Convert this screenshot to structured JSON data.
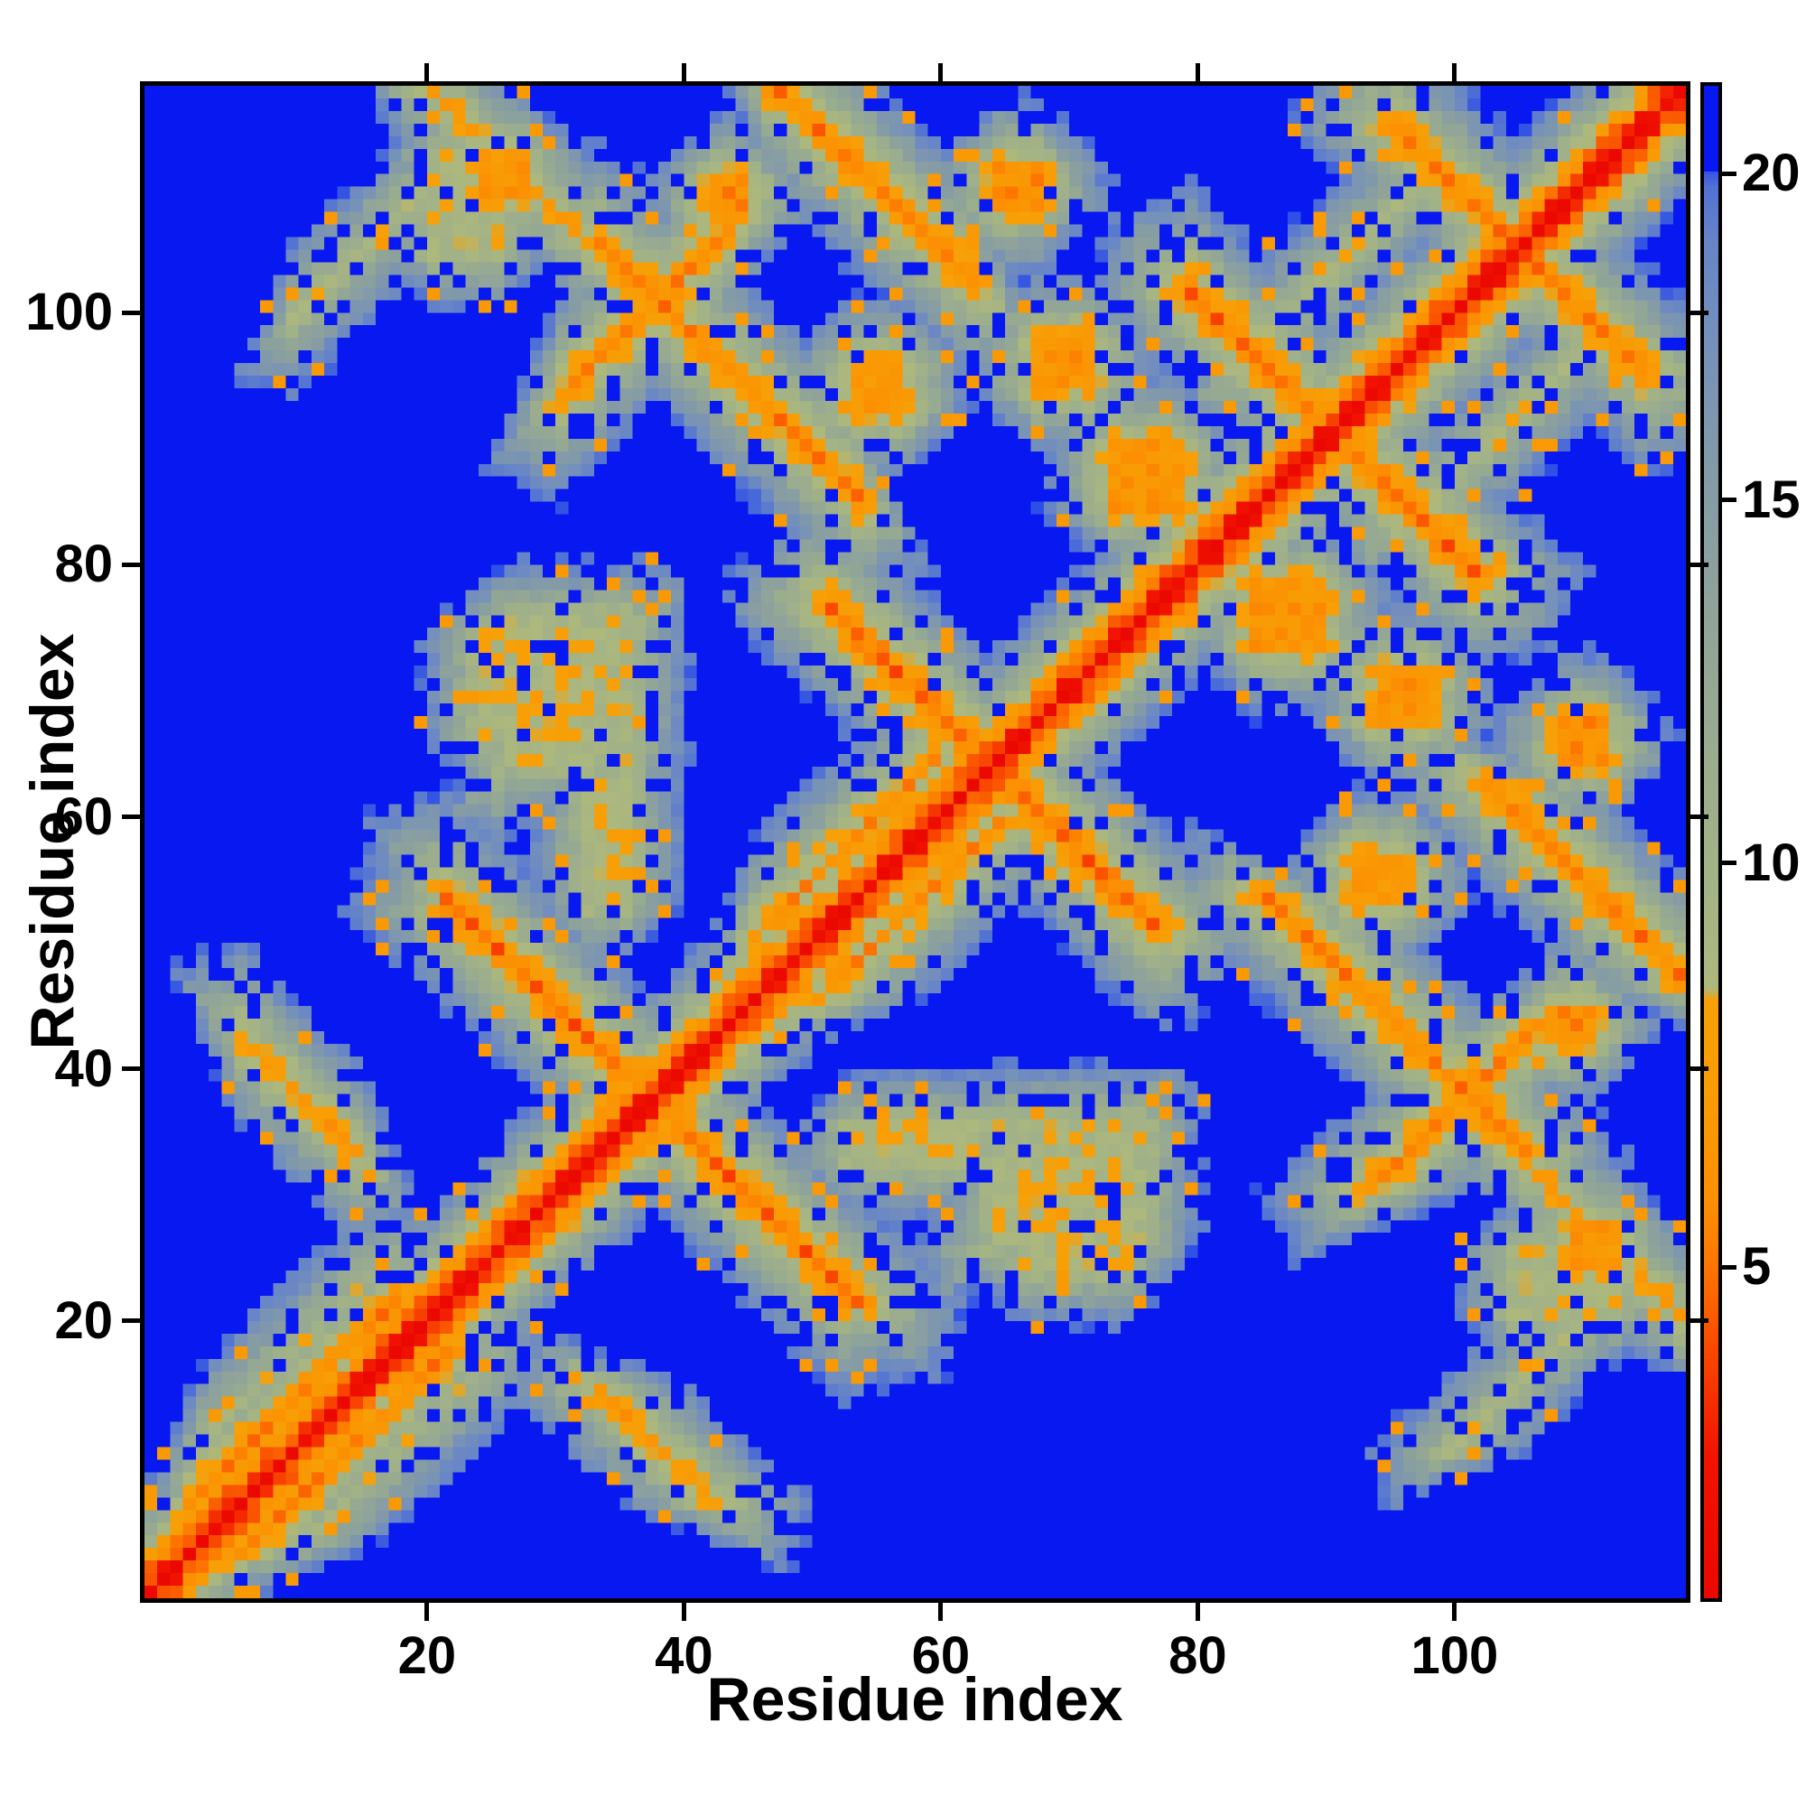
{
  "chart_data": {
    "type": "heatmap",
    "title": "",
    "xlabel": "Residue index",
    "ylabel": "Residue index",
    "x_ticks": [
      20,
      40,
      60,
      80,
      100
    ],
    "y_ticks": [
      20,
      40,
      60,
      80,
      100
    ],
    "x_axis_range": [
      -2,
      118
    ],
    "y_axis_range": [
      -2,
      118
    ],
    "n_cells": 120,
    "grid": false,
    "legend_position": "right-colorbar",
    "value_range": [
      1.5,
      22
    ],
    "background_cutoff_value": 20.1,
    "background_color": "#0718f0",
    "colorbar": {
      "ticks": [
        {
          "value": 20,
          "fraction_from_top": 0.058
        },
        {
          "value": 15,
          "fraction_from_top": 0.274
        },
        {
          "value": 10,
          "fraction_from_top": 0.514
        },
        {
          "value": 5,
          "fraction_from_top": 0.781
        }
      ],
      "top_value": 22,
      "bottom_value": 1.5
    },
    "colormap_stops": [
      [
        1.5,
        "#ea0800"
      ],
      [
        3.0,
        "#f11300"
      ],
      [
        4.0,
        "#f84300"
      ],
      [
        5.0,
        "#fd7500"
      ],
      [
        5.8,
        "#fc8f03"
      ],
      [
        7.0,
        "#f99a04"
      ],
      [
        8.3,
        "#f7a007"
      ],
      [
        8.45,
        "#adb87c"
      ],
      [
        10.0,
        "#a2b287"
      ],
      [
        12.0,
        "#97aa91"
      ],
      [
        14.0,
        "#8ca19d"
      ],
      [
        16.0,
        "#8098ab"
      ],
      [
        17.5,
        "#7590bb"
      ],
      [
        19.0,
        "#6684c8"
      ],
      [
        19.8,
        "#5272d4"
      ],
      [
        20.1,
        "#2e4fe6"
      ],
      [
        20.12,
        "#0718f0"
      ],
      [
        22.0,
        "#0718f0"
      ]
    ],
    "matrix_model": {
      "description": "symmetric residue-residue distance map; red diagonal, orange close contacts, sage/steel halo, blue beyond cutoff",
      "diagonal": {
        "v0": 1.5,
        "growth": 2.0
      },
      "feature_growth": 2.4,
      "antiparallel_features": [
        {
          "c": 74,
          "i0": 21,
          "i1": 52,
          "v0": 5.0
        },
        {
          "c": 127,
          "i0": 51,
          "i1": 76,
          "v0": 4.8
        },
        {
          "c": 180,
          "i0": 79,
          "i1": 101,
          "v0": 5.0
        },
        {
          "c": 209,
          "i0": 95,
          "i1": 114,
          "v0": 5.6
        },
        {
          "c": 137,
          "i0": 17,
          "i1": 33,
          "v0": 7.6
        },
        {
          "c": 138,
          "i0": 33,
          "i1": 53,
          "v0": 5.6
        },
        {
          "c": 164,
          "i0": 46,
          "i1": 62,
          "v0": 5.5
        },
        {
          "c": 47,
          "i0": 5,
          "i1": 14,
          "v0": 6.8
        }
      ],
      "parallel_features": [
        {
          "k": 4,
          "i0": 1,
          "i1": 17,
          "v0": 5.8
        },
        {
          "k": 8,
          "i0": 2,
          "i1": 15,
          "v0": 9.4
        },
        {
          "k": 63,
          "i0": 30,
          "i1": 44,
          "v0": 5.8
        },
        {
          "k": 5,
          "i0": 45,
          "i1": 59,
          "v0": 6.0
        },
        {
          "k": 38,
          "i0": 25,
          "i1": 36,
          "v0": 9.0
        },
        {
          "k": 90,
          "i0": 9,
          "i1": 23,
          "v0": 9.2
        },
        {
          "k": 13,
          "i0": 82,
          "i1": 96,
          "v0": 9.0
        }
      ],
      "blob_features": [
        {
          "i": 28.5,
          "j": 70,
          "ri": 5,
          "rj": 4,
          "v0": 9.0
        },
        {
          "i": 33.5,
          "j": 57.5,
          "ri": 1.5,
          "rj": 5,
          "v0": 8.8
        },
        {
          "i": 30.5,
          "j": 69.5,
          "ri": 5,
          "rj": 6,
          "v0": 9.3
        },
        {
          "i": 65.5,
          "j": 109.5,
          "ri": 1.5,
          "rj": 1.5,
          "v0": 6.2
        },
        {
          "i": 43,
          "j": 108.5,
          "ri": 1.2,
          "rj": 1.2,
          "v0": 6.0
        },
        {
          "i": 25.5,
          "j": 110,
          "ri": 1.5,
          "rj": 1.5,
          "v0": 6.3
        },
        {
          "i": 69,
          "j": 95.5,
          "ri": 2,
          "rj": 2,
          "v0": 6.6
        },
        {
          "i": 75.5,
          "j": 86.5,
          "ri": 2.5,
          "rj": 2.5,
          "v0": 6.4
        },
        {
          "i": 54.5,
          "j": 93.5,
          "ri": 2,
          "rj": 2,
          "v0": 6.8
        },
        {
          "i": 22.5,
          "j": 108,
          "ri": 2.5,
          "rj": 4,
          "v0": 9.2
        }
      ],
      "noise": {
        "amplitude": 2.4,
        "blue_speckle_prob": 0.16,
        "orange_speckle_prob": 0.05
      }
    }
  }
}
